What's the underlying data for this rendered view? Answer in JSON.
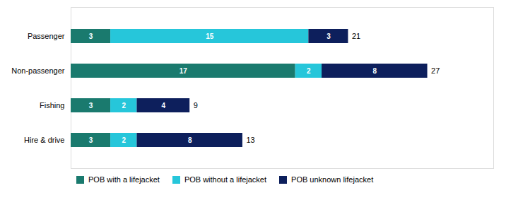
{
  "chart_data": {
    "type": "bar",
    "orientation": "horizontal",
    "stacked": true,
    "categories": [
      "Hire & drive",
      "Fishing",
      "Non-passenger",
      "Passenger"
    ],
    "series": [
      {
        "name": "POB with a lifejacket",
        "color": "#1a7a6e",
        "values": [
          3,
          3,
          17,
          3
        ]
      },
      {
        "name": "POB without a lifejacket",
        "color": "#26c6da",
        "values": [
          2,
          2,
          2,
          15
        ]
      },
      {
        "name": "POB unknown lifejacket",
        "color": "#0d1f5c",
        "values": [
          8,
          4,
          8,
          3
        ]
      }
    ],
    "totals": [
      13,
      9,
      27,
      21
    ],
    "xlim": [
      0,
      32
    ],
    "xticks": [],
    "tick_labels": "y",
    "data_labels": true,
    "legend": "bottom"
  }
}
